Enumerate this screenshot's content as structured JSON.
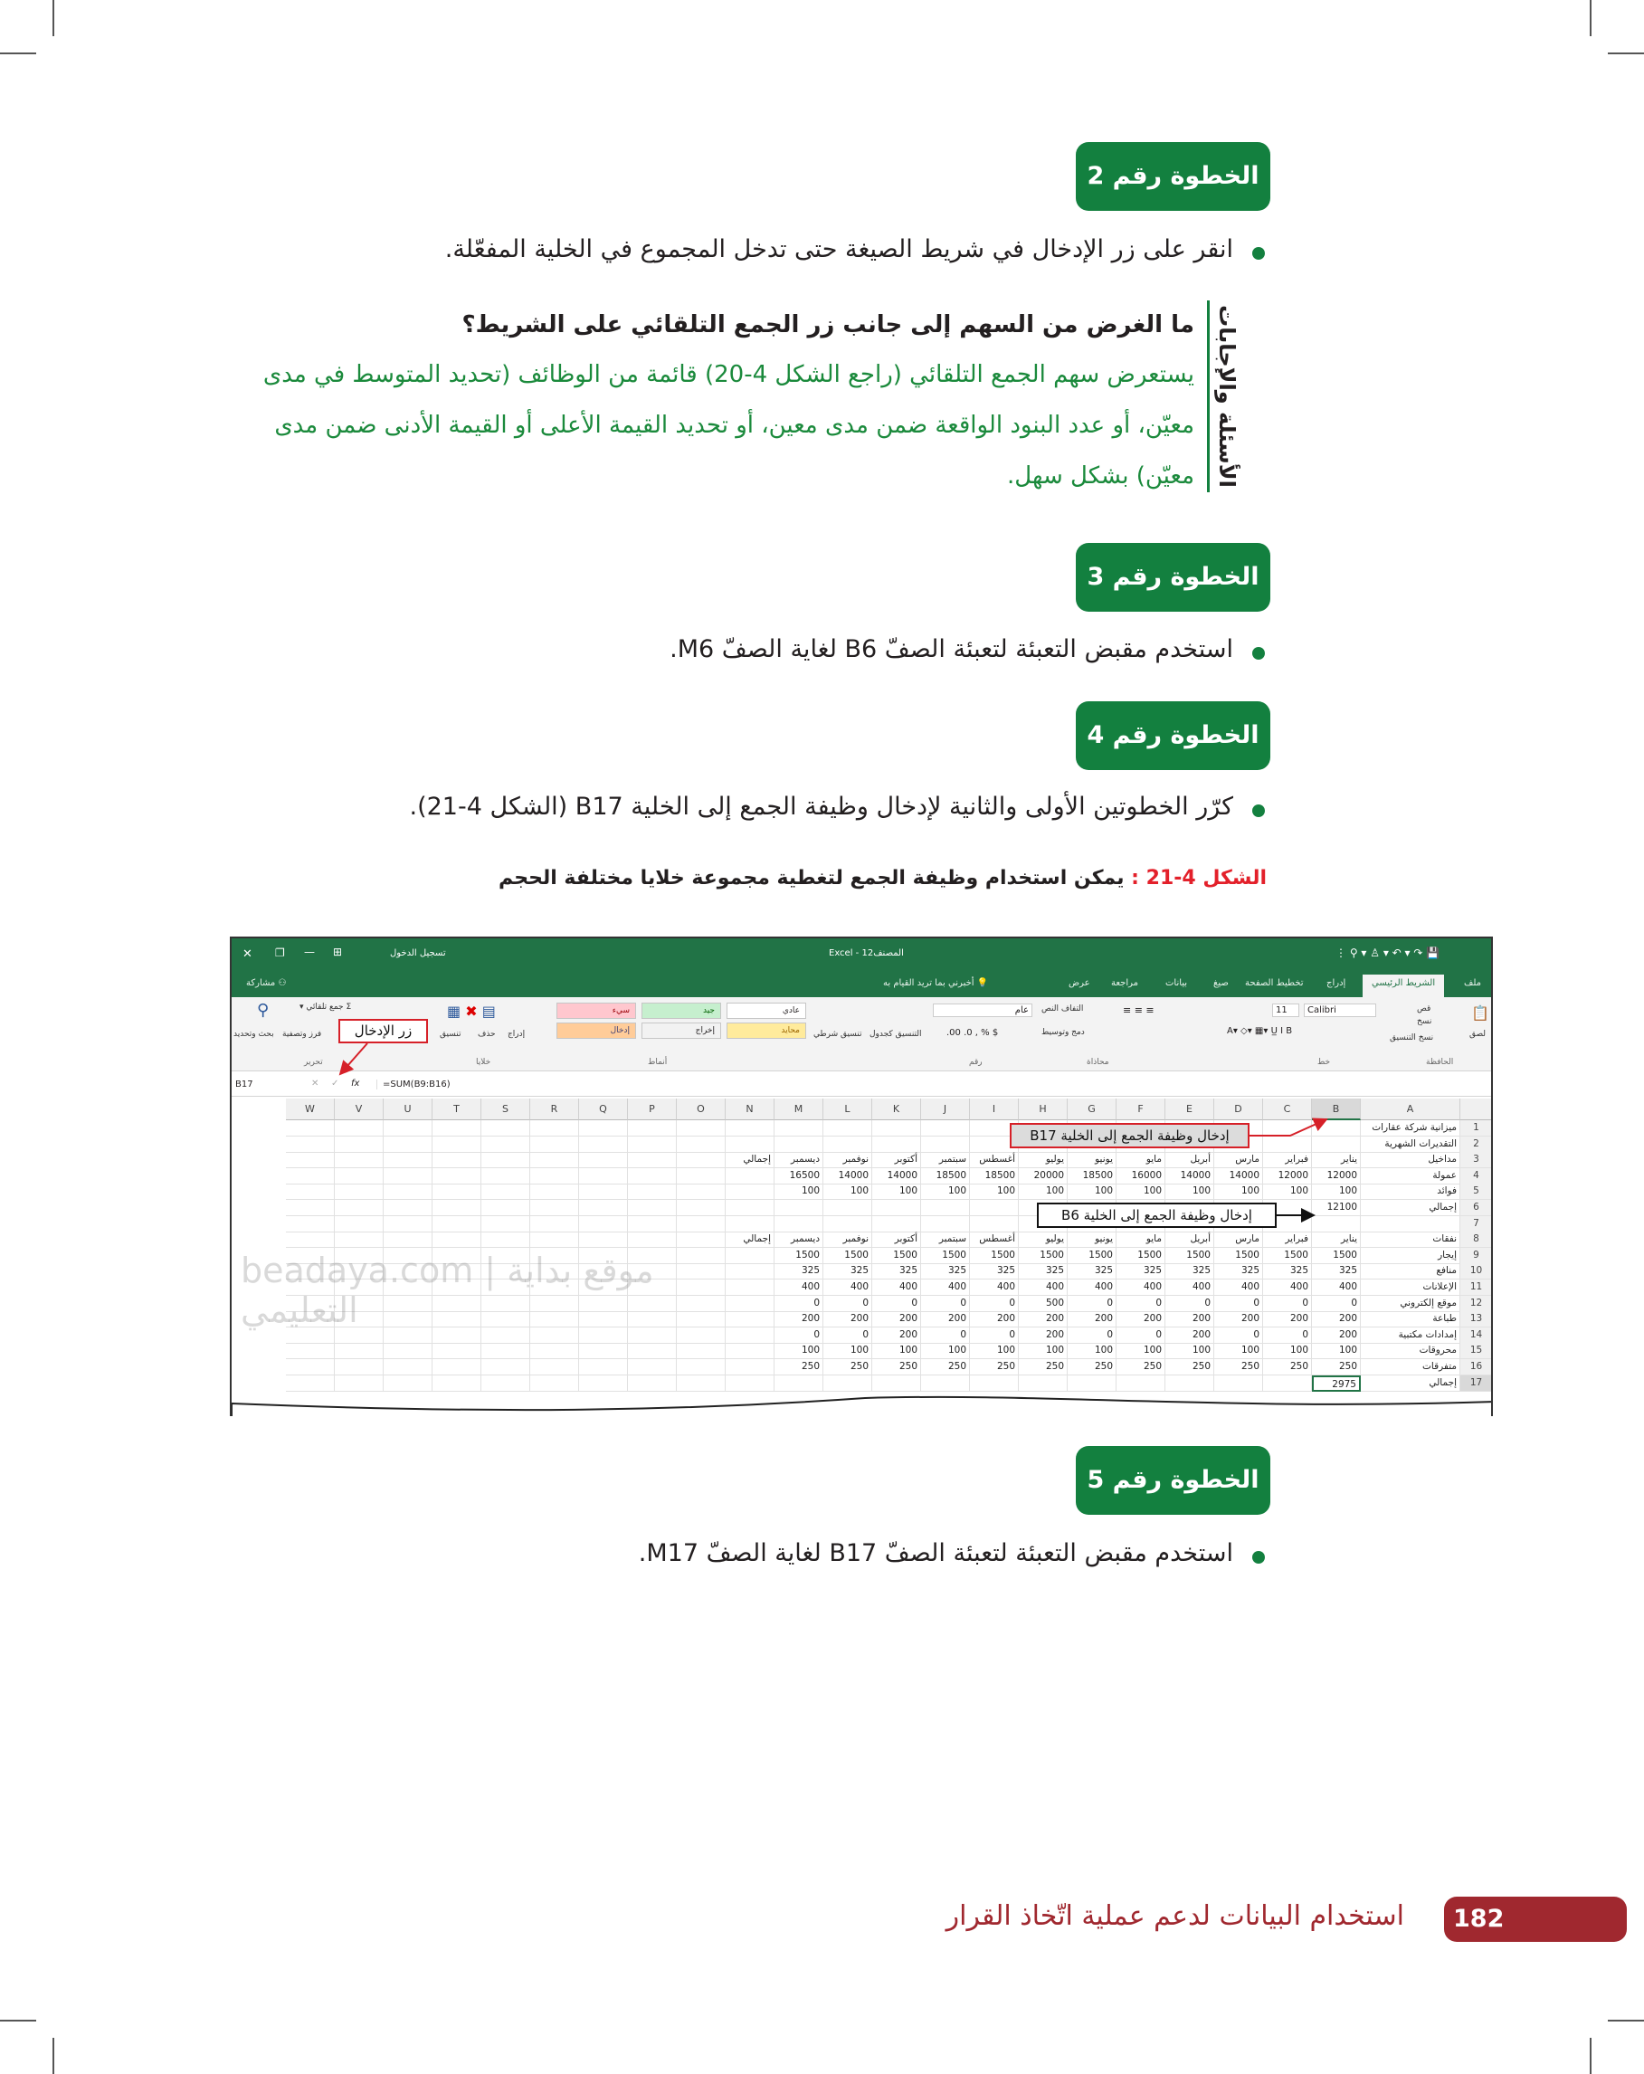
{
  "steps": [
    {
      "label": "الخطوة رقم 2",
      "bullet": "انقر على زر الإدخال في شريط الصيغة حتى تدخل المجموع في الخلية المفعّلة."
    },
    {
      "label": "الخطوة رقم 3",
      "bullet": "استخدم مقبض التعبئة لتعبئة الصفّ B6 لغاية الصفّ M6."
    },
    {
      "label": "الخطوة رقم 4",
      "bullet": "كرّر الخطوتين الأولى والثانية لإدخال وظيفة الجمع إلى الخلية B17 (الشكل 4-21)."
    },
    {
      "label": "الخطوة رقم 5",
      "bullet": "استخدم مقبض التعبئة لتعبئة الصفّ B17 لغاية الصفّ M17."
    }
  ],
  "qa": {
    "label": "الأسئلة والإجابات",
    "question": "ما الغرض من السهم إلى جانب زر الجمع التلقائي على الشريط؟",
    "answer": "يستعرض سهم الجمع التلقائي (راجع الشكل 4-20) قائمة من الوظائف (تحديد المتوسط في مدى معيّن، أو عدد البنود الواقعة ضمن مدى معين، أو تحديد القيمة الأعلى أو القيمة الأدنى ضمن مدى معيّن) بشكل سهل."
  },
  "figure": {
    "number": "الشكل 4-21 :",
    "caption": "يمكن استخدام وظيفة الجمع لتغطية مجموعة خلايا مختلفة الحجم"
  },
  "excel": {
    "title": "المصنف12 - Excel",
    "sign_in": "تسجيل الدخول",
    "share": "مشاركة",
    "tabs": [
      "ملف",
      "الشريط الرئيسي",
      "إدراج",
      "تخطيط الصفحة",
      "صيغ",
      "بيانات",
      "مراجعة",
      "عرض"
    ],
    "tell_me": "أخبرني بما تريد القيام به",
    "ribbon": {
      "clipboard": {
        "group": "الحافظة",
        "paste": "لصق",
        "cut": "قص",
        "copy": "نسخ",
        "format_painter": "نسخ التنسيق"
      },
      "font": {
        "group": "خط",
        "name": "Calibri",
        "size": "11"
      },
      "alignment": {
        "group": "محاذاة",
        "wrap": "التفاف النص",
        "merge": "دمج وتوسيط"
      },
      "number": {
        "group": "رقم",
        "format": "عام"
      },
      "styles": {
        "group": "أنماط",
        "conditional": "تنسيق شرطي",
        "as_table": "التنسيق كجدول",
        "items": [
          "عادي",
          "جيد",
          "سيء",
          "محايد",
          "إخراج",
          "إدخال"
        ]
      },
      "cells": {
        "group": "خلايا",
        "insert": "إدراج",
        "delete": "حذف",
        "format": "تنسيق"
      },
      "editing": {
        "group": "تحرير",
        "autosum": "جمع تلقائي",
        "sort": "فرز وتصفية",
        "find": "بحث وتحديد"
      }
    },
    "name_box": "B17",
    "formula": "=SUM(B9:B16)",
    "columns": [
      "A",
      "B",
      "C",
      "D",
      "E",
      "F",
      "G",
      "H",
      "I",
      "J",
      "K",
      "L",
      "M",
      "N",
      "O",
      "P",
      "Q",
      "R",
      "S",
      "T",
      "U",
      "V",
      "W"
    ],
    "rows": [
      [
        "ميزانية شركة عقارات"
      ],
      [
        "التقديرات الشهرية"
      ],
      [
        "مداخيل",
        "يناير",
        "فبراير",
        "مارس",
        "أبريل",
        "مايو",
        "يونيو",
        "يوليو",
        "أغسطس",
        "سبتمبر",
        "أكتوبر",
        "نوفمبر",
        "ديسمبر",
        "إجمالي"
      ],
      [
        "عمولة",
        "12000",
        "12000",
        "14000",
        "14000",
        "16000",
        "18500",
        "20000",
        "18500",
        "18500",
        "14000",
        "14000",
        "16500"
      ],
      [
        "فوائد",
        "100",
        "100",
        "100",
        "100",
        "100",
        "100",
        "100",
        "100",
        "100",
        "100",
        "100",
        "100"
      ],
      [
        "إجمالي",
        "12100"
      ],
      [],
      [
        "نفقات",
        "يناير",
        "فبراير",
        "مارس",
        "أبريل",
        "مايو",
        "يونيو",
        "يوليو",
        "أغسطس",
        "سبتمبر",
        "أكتوبر",
        "نوفمبر",
        "ديسمبر",
        "إجمالي"
      ],
      [
        "إيجار",
        "1500",
        "1500",
        "1500",
        "1500",
        "1500",
        "1500",
        "1500",
        "1500",
        "1500",
        "1500",
        "1500",
        "1500"
      ],
      [
        "منافع",
        "325",
        "325",
        "325",
        "325",
        "325",
        "325",
        "325",
        "325",
        "325",
        "325",
        "325",
        "325"
      ],
      [
        "الإعلانات",
        "400",
        "400",
        "400",
        "400",
        "400",
        "400",
        "400",
        "400",
        "400",
        "400",
        "400",
        "400"
      ],
      [
        "موقع إلكتروني",
        "0",
        "0",
        "0",
        "0",
        "0",
        "0",
        "500",
        "0",
        "0",
        "0",
        "0",
        "0"
      ],
      [
        "طباعة",
        "200",
        "200",
        "200",
        "200",
        "200",
        "200",
        "200",
        "200",
        "200",
        "200",
        "200",
        "200"
      ],
      [
        "إمدادات مكتبية",
        "200",
        "0",
        "0",
        "200",
        "0",
        "0",
        "200",
        "0",
        "0",
        "200",
        "0",
        "0"
      ],
      [
        "محروقات",
        "100",
        "100",
        "100",
        "100",
        "100",
        "100",
        "100",
        "100",
        "100",
        "100",
        "100",
        "100"
      ],
      [
        "متفرقات",
        "250",
        "250",
        "250",
        "250",
        "250",
        "250",
        "250",
        "250",
        "250",
        "250",
        "250",
        "250"
      ],
      [
        "إجمالي",
        "2975"
      ]
    ],
    "active_cell": "B17",
    "callouts": {
      "enter_button": "زر الإدخال",
      "b17_line1": "إدخال وظيفة الجمع",
      "b17_line2": "إلى الخلية B17",
      "b6_line1": "إدخال وظيفة الجمع",
      "b6_line2": "إلى الخلية B6"
    },
    "watermark": "beadaya.com | موقع بداية التعليمي"
  },
  "footer": {
    "page_number": "182",
    "title": "استخدام البيانات لدعم عملية اتّخاذ القرار"
  },
  "colors": {
    "green": "#13803f",
    "answer_green": "#1b8a3c",
    "figure_red": "#e3202a",
    "footer_red": "#a0282f",
    "excel_green": "#217346"
  }
}
